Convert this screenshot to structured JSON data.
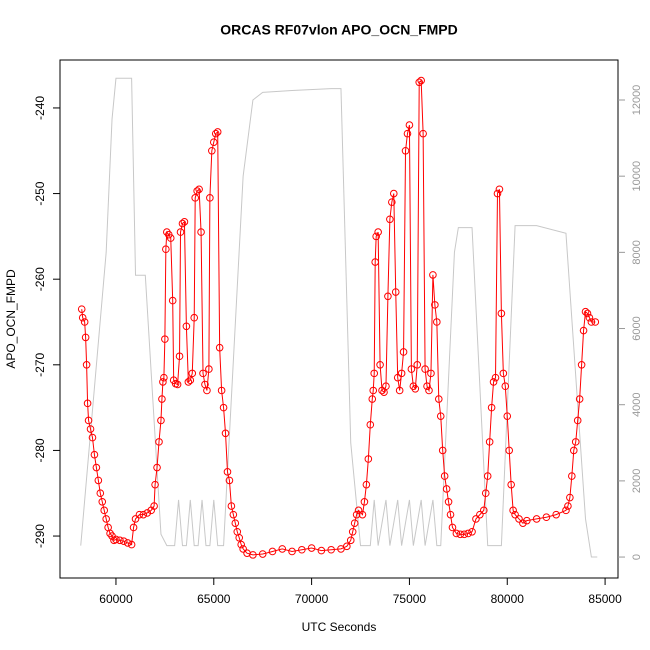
{
  "chart_data": {
    "type": "line",
    "title": "ORCAS RF07vlon APO_OCN_FMPD",
    "xlabel": "UTC Seconds",
    "ylabel": "APO_OCN_FMPD",
    "xlim": [
      57140,
      85660
    ],
    "ylim": [
      -294.9,
      -234.4
    ],
    "y2lim": [
      -550,
      13050
    ],
    "xticks": [
      {
        "value": 60000,
        "label": "60000"
      },
      {
        "value": 65000,
        "label": "65000"
      },
      {
        "value": 70000,
        "label": "70000"
      },
      {
        "value": 75000,
        "label": "75000"
      },
      {
        "value": 80000,
        "label": "80000"
      },
      {
        "value": 85000,
        "label": "85000"
      }
    ],
    "yticks": [
      -240,
      -250,
      -260,
      -270,
      -280,
      -290
    ],
    "y2ticks": [
      0,
      2000,
      4000,
      6000,
      8000,
      10000,
      12000
    ],
    "series": [
      {
        "color": "#c8c8c8",
        "axis": "y2",
        "markers": false,
        "x": [
          58200,
          59500,
          59800,
          60000,
          60800,
          61000,
          61500,
          62300,
          62600,
          63000,
          63200,
          63400,
          63600,
          63800,
          64000,
          64200,
          64400,
          64600,
          64800,
          65000,
          65200,
          65500,
          66500,
          67000,
          67500,
          69000,
          71000,
          71500,
          72000,
          72500,
          73000,
          73200,
          73400,
          73800,
          74000,
          74400,
          74600,
          75000,
          75200,
          75600,
          75800,
          76200,
          76400,
          76600,
          77300,
          77500,
          78200,
          79000,
          79700,
          80400,
          81300,
          81500,
          83000,
          84000,
          84300,
          84600
        ],
        "values": [
          300,
          8000,
          11500,
          12570,
          12570,
          7400,
          7400,
          600,
          300,
          300,
          1500,
          300,
          300,
          1500,
          300,
          300,
          1500,
          300,
          300,
          1500,
          300,
          300,
          10000,
          12000,
          12200,
          12250,
          12300,
          12300,
          3000,
          300,
          300,
          1500,
          300,
          1500,
          300,
          1500,
          300,
          1500,
          300,
          1500,
          300,
          1500,
          300,
          300,
          8000,
          8650,
          8650,
          300,
          300,
          8700,
          8700,
          8700,
          8500,
          1000,
          0,
          0
        ]
      },
      {
        "color": "#ff0000",
        "markers": true,
        "x": [
          58250,
          58300,
          58400,
          58450,
          58500,
          58550,
          58600,
          58700,
          58800,
          58900,
          59000,
          59100,
          59200,
          59300,
          59400,
          59500,
          59600,
          59700,
          59800,
          59900,
          60000,
          60200,
          60400,
          60600,
          60800,
          60900,
          61000,
          61200,
          61400,
          61600,
          61800,
          61950,
          62000,
          62100,
          62200,
          62300,
          62350,
          62400,
          62450,
          62500,
          62550,
          62600,
          62700,
          62800,
          62900,
          62950,
          63050,
          63150,
          63250,
          63300,
          63400,
          63500,
          63600,
          63700,
          63800,
          63900,
          64000,
          64050,
          64150,
          64250,
          64350,
          64450,
          64550,
          64650,
          64750,
          64800,
          64900,
          65000,
          65100,
          65200,
          65300,
          65400,
          65500,
          65600,
          65700,
          65800,
          65900,
          66000,
          66100,
          66200,
          66300,
          66400,
          66500,
          66700,
          67000,
          67500,
          68000,
          68500,
          69000,
          69500,
          70000,
          70500,
          71000,
          71500,
          71800,
          72000,
          72100,
          72200,
          72300,
          72400,
          72600,
          72700,
          72800,
          72900,
          73000,
          73100,
          73150,
          73200,
          73250,
          73300,
          73400,
          73500,
          73600,
          73700,
          73800,
          73900,
          74000,
          74100,
          74200,
          74300,
          74400,
          74500,
          74600,
          74700,
          74800,
          74900,
          75000,
          75100,
          75200,
          75300,
          75400,
          75500,
          75600,
          75700,
          75800,
          75900,
          76000,
          76100,
          76200,
          76300,
          76400,
          76500,
          76600,
          76700,
          76800,
          76900,
          77000,
          77100,
          77200,
          77400,
          77600,
          77800,
          78000,
          78200,
          78400,
          78600,
          78800,
          78900,
          79000,
          79100,
          79200,
          79300,
          79400,
          79500,
          79600,
          79700,
          79800,
          79900,
          80000,
          80100,
          80200,
          80300,
          80400,
          80600,
          80800,
          81000,
          81500,
          82000,
          82500,
          83000,
          83100,
          83200,
          83300,
          83400,
          83500,
          83600,
          83700,
          83800,
          83900,
          84000,
          84100,
          84200,
          84300,
          84500
        ],
        "values": [
          -263.5,
          -264.5,
          -265,
          -266.8,
          -270,
          -274.5,
          -276.5,
          -277.5,
          -278.5,
          -280.5,
          -282,
          -283.5,
          -285,
          -286,
          -287,
          -288,
          -289,
          -289.7,
          -290,
          -290.5,
          -290.4,
          -290.5,
          -290.6,
          -290.8,
          -291,
          -289,
          -288,
          -287.5,
          -287.5,
          -287.3,
          -287,
          -286.5,
          -284,
          -282,
          -279,
          -276.5,
          -274,
          -272,
          -271.5,
          -267,
          -256.5,
          -254.5,
          -254.8,
          -255.2,
          -262.5,
          -271.8,
          -272.2,
          -272.3,
          -269,
          -254.5,
          -253.5,
          -253.3,
          -265.5,
          -272,
          -271.8,
          -271,
          -264.5,
          -250.5,
          -249.7,
          -249.5,
          -254.5,
          -271,
          -272.3,
          -273,
          -270.5,
          -250.5,
          -245,
          -244,
          -243,
          -242.8,
          -268,
          -273,
          -275,
          -278,
          -282.5,
          -283.5,
          -286.5,
          -287.5,
          -288.5,
          -289.5,
          -290.2,
          -291,
          -291.5,
          -292,
          -292.2,
          -292.1,
          -291.8,
          -291.5,
          -291.8,
          -291.6,
          -291.4,
          -291.7,
          -291.6,
          -291.5,
          -291.2,
          -290.5,
          -289.5,
          -288.5,
          -287.5,
          -287,
          -287.5,
          -286,
          -284,
          -281,
          -277,
          -274,
          -273,
          -271,
          -258,
          -255,
          -254.5,
          -270,
          -273,
          -273.2,
          -272.5,
          -262,
          -253,
          -251,
          -250,
          -261.5,
          -271.5,
          -273,
          -271,
          -268.5,
          -245,
          -243,
          -242,
          -270.5,
          -272.5,
          -272.8,
          -270,
          -237,
          -236.8,
          -243,
          -270.5,
          -272.5,
          -273,
          -271,
          -259.5,
          -263,
          -265,
          -274,
          -276,
          -280,
          -283,
          -284.5,
          -286,
          -287.5,
          -289,
          -289.7,
          -289.8,
          -289.8,
          -289.7,
          -289.5,
          -288,
          -287.5,
          -287,
          -285,
          -283,
          -279,
          -275,
          -272,
          -271.5,
          -250,
          -249.5,
          -264,
          -271,
          -272.5,
          -276,
          -280,
          -284,
          -287,
          -287.5,
          -288,
          -288.5,
          -288.2,
          -288,
          -287.8,
          -287.5,
          -287,
          -286.5,
          -285.5,
          -283,
          -280,
          -279,
          -276.5,
          -274,
          -270,
          -266,
          -263.8,
          -264,
          -264.5,
          -265,
          -265
        ]
      }
    ]
  }
}
